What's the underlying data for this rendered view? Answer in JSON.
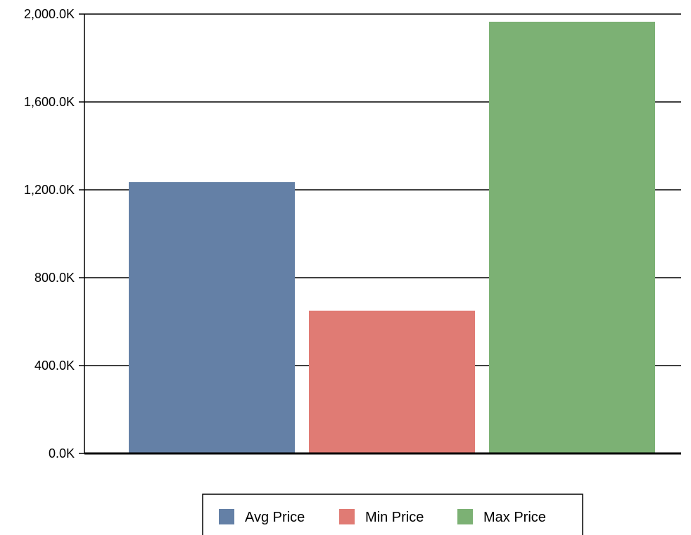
{
  "chart_data": {
    "type": "bar",
    "categories": [
      ""
    ],
    "series": [
      {
        "name": "Avg Price",
        "values": [
          1235000
        ],
        "color": "#6480a6"
      },
      {
        "name": "Min Price",
        "values": [
          650000
        ],
        "color": "#e07b74"
      },
      {
        "name": "Max Price",
        "values": [
          1965000
        ],
        "color": "#7cb174"
      }
    ],
    "ylim": [
      0,
      2000000
    ],
    "yticks": [
      0,
      400000,
      800000,
      1200000,
      1600000,
      2000000
    ],
    "ytick_labels": [
      "0.0K",
      "400.0K",
      "800.0K",
      "1,200.0K",
      "1,600.0K",
      "2,000.0K"
    ],
    "grid": true,
    "legend_position": "bottom-center"
  }
}
